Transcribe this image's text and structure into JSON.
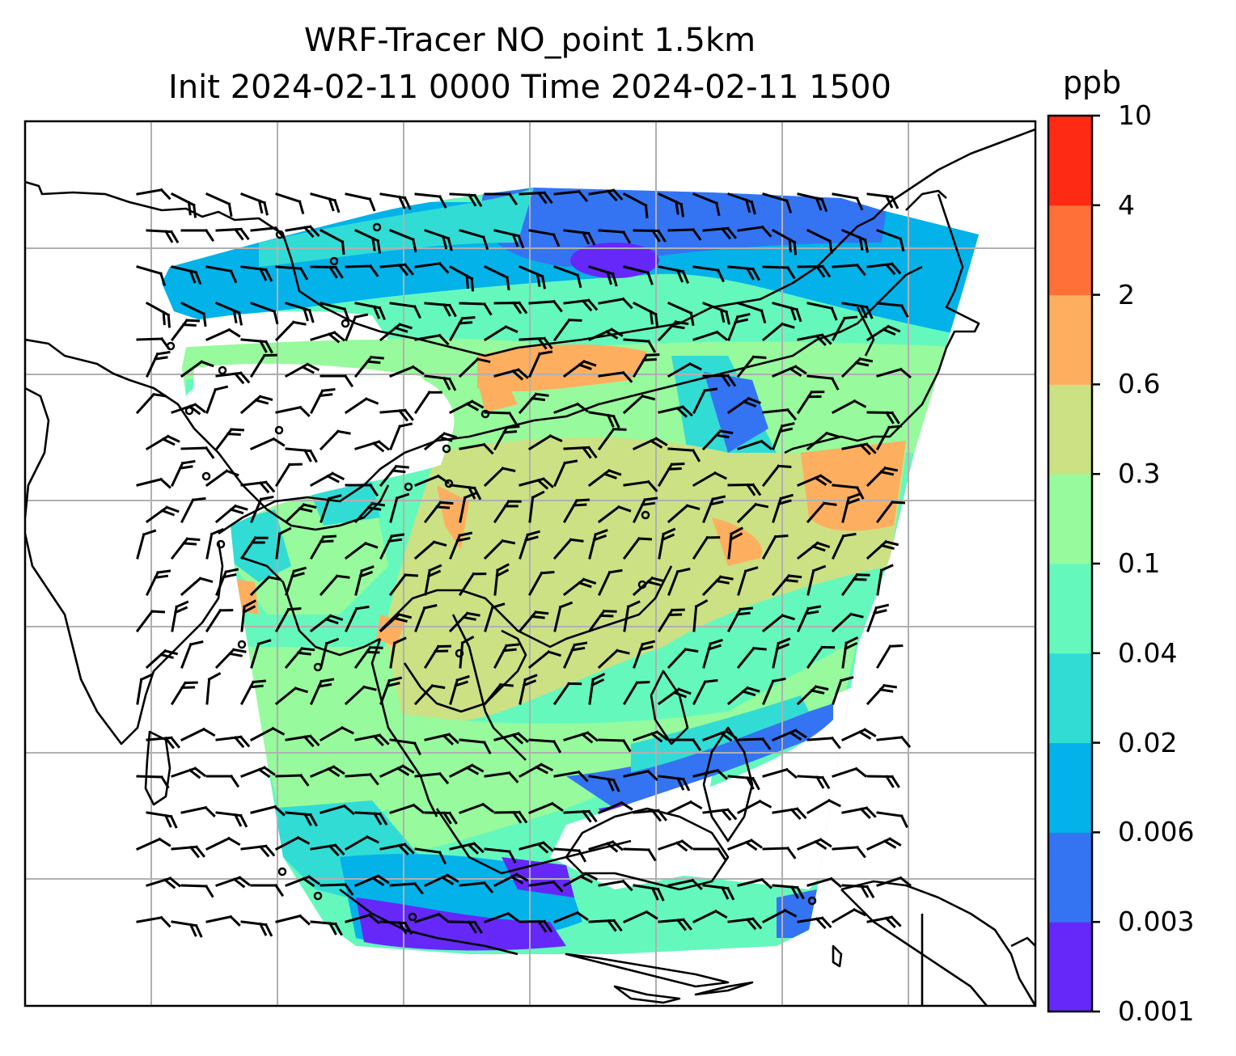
{
  "title": {
    "line1": "WRF-Tracer NO_point 1.5km",
    "line2": "Init 2024-02-11 0000 Time 2024-02-11 1500"
  },
  "colorbar": {
    "unit": "ppb",
    "levels": [
      "0.001",
      "0.003",
      "0.006",
      "0.02",
      "0.04",
      "0.1",
      "0.3",
      "0.6",
      "2",
      "4",
      "10"
    ],
    "colors": [
      "#6528f9",
      "#3474f3",
      "#03b2e9",
      "#31dcd5",
      "#64f8bd",
      "#97fa9c",
      "#cbe184",
      "#feae5f",
      "#ff7038",
      "#ff2a13"
    ]
  },
  "map": {
    "grid_color": "#b0b0b0",
    "coastline_color": "#000000",
    "barb_color": "#000000"
  }
}
